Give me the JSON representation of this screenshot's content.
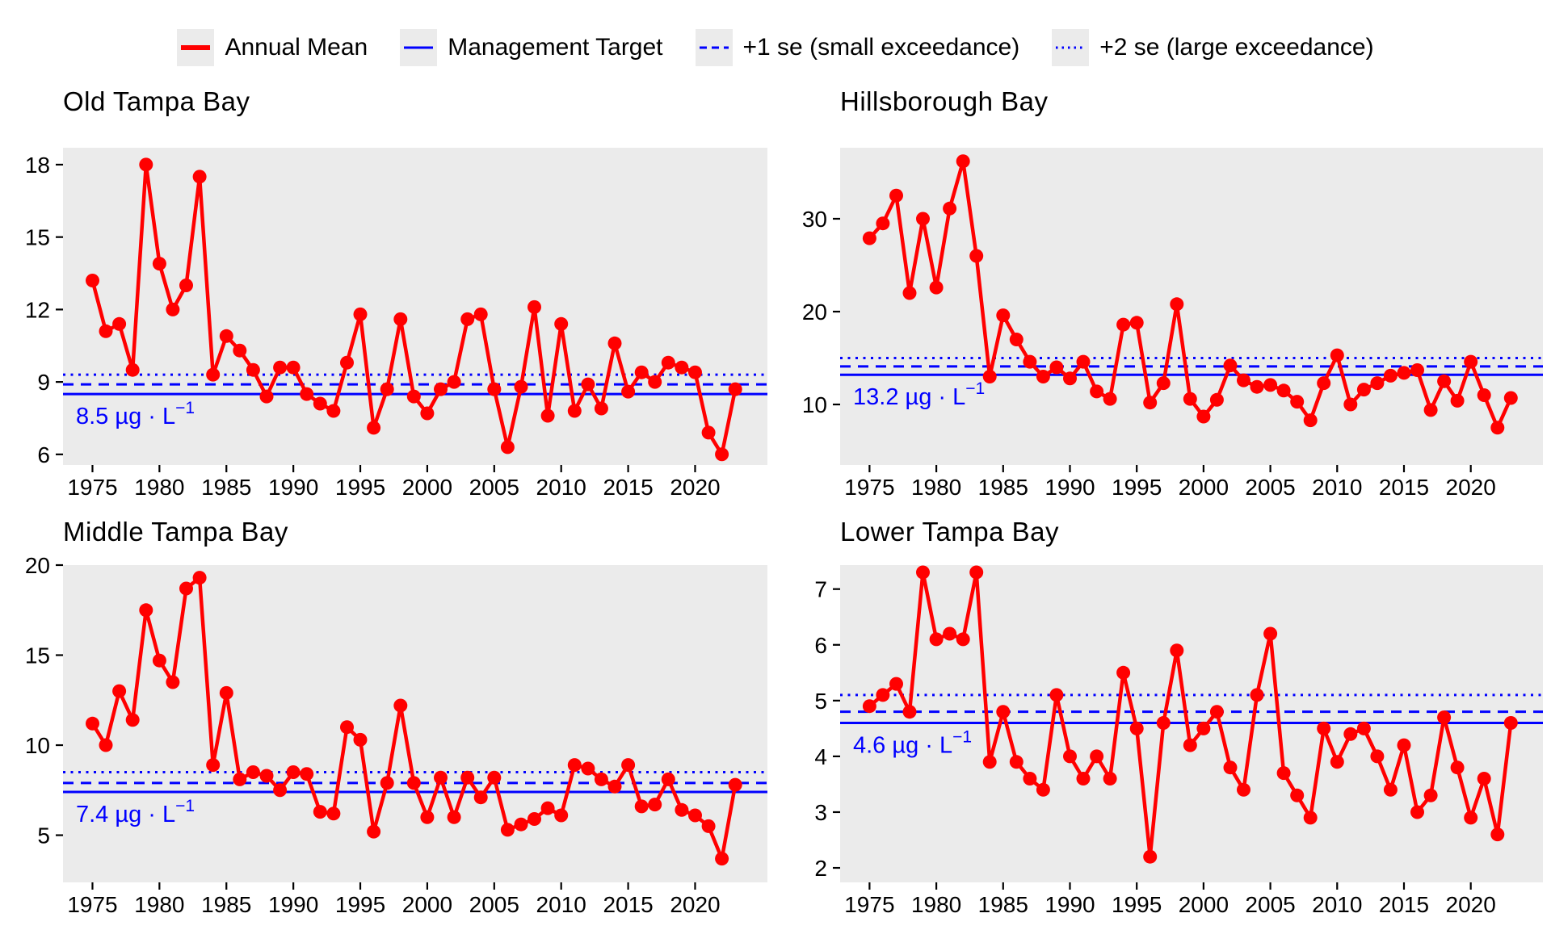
{
  "page": {
    "colors": {
      "series_red": "#FF0000",
      "target_blue": "#0000FF",
      "panel_gray": "#EBEBEB",
      "text_black": "#000000"
    }
  },
  "legend": {
    "items": [
      {
        "label": "Annual Mean",
        "style": "solid",
        "color": "#FF0000",
        "weight": 6
      },
      {
        "label": "Management Target",
        "style": "solid",
        "color": "#0000FF",
        "weight": 3
      },
      {
        "label": "+1 se (small exceedance)",
        "style": "dashed",
        "color": "#0000FF",
        "weight": 3
      },
      {
        "label": "+2 se (large exceedance)",
        "style": "dotted",
        "color": "#0000FF",
        "weight": 3
      }
    ]
  },
  "years": [
    1975,
    1976,
    1977,
    1978,
    1979,
    1980,
    1981,
    1982,
    1983,
    1984,
    1985,
    1986,
    1987,
    1988,
    1989,
    1990,
    1991,
    1992,
    1993,
    1994,
    1995,
    1996,
    1997,
    1998,
    1999,
    2000,
    2001,
    2002,
    2003,
    2004,
    2005,
    2006,
    2007,
    2008,
    2009,
    2010,
    2011,
    2012,
    2013,
    2014,
    2015,
    2016,
    2017,
    2018,
    2019,
    2020,
    2021,
    2022,
    2023
  ],
  "chart_data": [
    {
      "type": "line",
      "title": "Old Tampa Bay",
      "xlabel": "",
      "ylabel": "",
      "series": [
        {
          "name": "Annual Mean",
          "values": [
            13.2,
            11.1,
            11.4,
            9.5,
            18.0,
            13.9,
            12.0,
            13.0,
            17.5,
            9.3,
            10.9,
            10.3,
            9.5,
            8.4,
            9.6,
            9.6,
            8.5,
            8.1,
            7.8,
            9.8,
            11.8,
            7.1,
            8.7,
            11.6,
            8.4,
            7.7,
            8.7,
            9.0,
            11.6,
            11.8,
            8.7,
            6.3,
            8.8,
            12.1,
            7.6,
            11.4,
            7.8,
            8.9,
            7.9,
            10.6,
            8.6,
            9.4,
            9.0,
            9.8,
            9.6,
            9.4,
            6.9,
            6.0,
            8.7
          ]
        }
      ],
      "management_target": 8.5,
      "plus_1se": 8.9,
      "plus_2se": 9.3,
      "target_annotation": {
        "text": "8.5 µg · L",
        "superscript": "−1"
      },
      "y_ticks": [
        18,
        15,
        12,
        9,
        6
      ],
      "x_ticks": [
        1975,
        1980,
        1985,
        1990,
        1995,
        2000,
        2005,
        2010,
        2015,
        2020
      ],
      "ylim": [
        5.56,
        18.7
      ],
      "xlim": [
        1972.8,
        2025.4
      ],
      "grid": false,
      "legend_position": "top"
    },
    {
      "type": "line",
      "title": "Hillsborough Bay",
      "xlabel": "",
      "ylabel": "",
      "series": [
        {
          "name": "Annual Mean",
          "values": [
            27.9,
            29.5,
            32.5,
            22.0,
            30.0,
            22.6,
            31.1,
            36.2,
            26.0,
            13.0,
            19.6,
            17.0,
            14.6,
            13.0,
            14.0,
            12.8,
            14.6,
            11.4,
            10.6,
            18.6,
            18.8,
            10.2,
            12.3,
            20.8,
            10.6,
            8.7,
            10.5,
            14.2,
            12.6,
            11.9,
            12.1,
            11.5,
            10.3,
            8.3,
            12.3,
            15.3,
            10.0,
            11.6,
            12.3,
            13.1,
            13.4,
            13.7,
            9.4,
            12.5,
            10.4,
            14.6,
            11.0,
            7.5,
            10.7
          ]
        }
      ],
      "management_target": 13.2,
      "plus_1se": 14.1,
      "plus_2se": 15.0,
      "target_annotation": {
        "text": "13.2 µg · L",
        "superscript": "−1"
      },
      "y_ticks": [
        30,
        20,
        10
      ],
      "x_ticks": [
        1975,
        1980,
        1985,
        1990,
        1995,
        2000,
        2005,
        2010,
        2015,
        2020
      ],
      "ylim": [
        3.48,
        37.65
      ],
      "xlim": [
        1972.8,
        2025.4
      ],
      "grid": false,
      "legend_position": "top"
    },
    {
      "type": "line",
      "title": "Middle Tampa Bay",
      "xlabel": "",
      "ylabel": "",
      "series": [
        {
          "name": "Annual Mean",
          "values": [
            11.2,
            10.0,
            13.0,
            11.4,
            17.5,
            14.7,
            13.5,
            18.7,
            19.3,
            8.9,
            12.9,
            8.1,
            8.5,
            8.3,
            7.5,
            8.5,
            8.4,
            6.3,
            6.2,
            11.0,
            10.3,
            5.2,
            7.9,
            12.2,
            7.9,
            6.0,
            8.2,
            6.0,
            8.2,
            7.1,
            8.2,
            5.3,
            5.6,
            5.9,
            6.5,
            6.1,
            8.9,
            8.7,
            8.1,
            7.7,
            8.9,
            6.6,
            6.7,
            8.1,
            6.4,
            6.1,
            5.5,
            3.7,
            7.8
          ]
        }
      ],
      "management_target": 7.4,
      "plus_1se": 7.9,
      "plus_2se": 8.5,
      "target_annotation": {
        "text": "7.4 µg · L",
        "superscript": "−1"
      },
      "y_ticks": [
        20,
        15,
        10,
        5
      ],
      "x_ticks": [
        1975,
        1980,
        1985,
        1990,
        1995,
        2000,
        2005,
        2010,
        2015,
        2020
      ],
      "ylim": [
        2.38,
        20.0
      ],
      "xlim": [
        1972.8,
        2025.4
      ],
      "grid": false,
      "legend_position": "top"
    },
    {
      "type": "line",
      "title": "Lower Tampa Bay",
      "xlabel": "",
      "ylabel": "",
      "series": [
        {
          "name": "Annual Mean",
          "values": [
            4.9,
            5.1,
            5.3,
            4.8,
            7.3,
            6.1,
            6.2,
            6.1,
            7.3,
            3.9,
            4.8,
            3.9,
            3.6,
            3.4,
            5.1,
            4.0,
            3.6,
            4.0,
            3.6,
            5.5,
            4.5,
            2.2,
            4.6,
            5.9,
            4.2,
            4.5,
            4.8,
            3.8,
            3.4,
            5.1,
            6.2,
            3.7,
            3.3,
            2.9,
            4.5,
            3.9,
            4.4,
            4.5,
            4.0,
            3.4,
            4.2,
            3.0,
            3.3,
            4.7,
            3.8,
            2.9,
            3.6,
            2.6,
            4.6
          ]
        }
      ],
      "management_target": 4.6,
      "plus_1se": 4.8,
      "plus_2se": 5.1,
      "target_annotation": {
        "text": "4.6 µg · L",
        "superscript": "−1"
      },
      "y_ticks": [
        7,
        6,
        5,
        4,
        3,
        2
      ],
      "x_ticks": [
        1975,
        1980,
        1985,
        1990,
        1995,
        2000,
        2005,
        2010,
        2015,
        2020
      ],
      "ylim": [
        1.74,
        7.43
      ],
      "xlim": [
        1972.8,
        2025.4
      ],
      "grid": false,
      "legend_position": "top"
    }
  ]
}
